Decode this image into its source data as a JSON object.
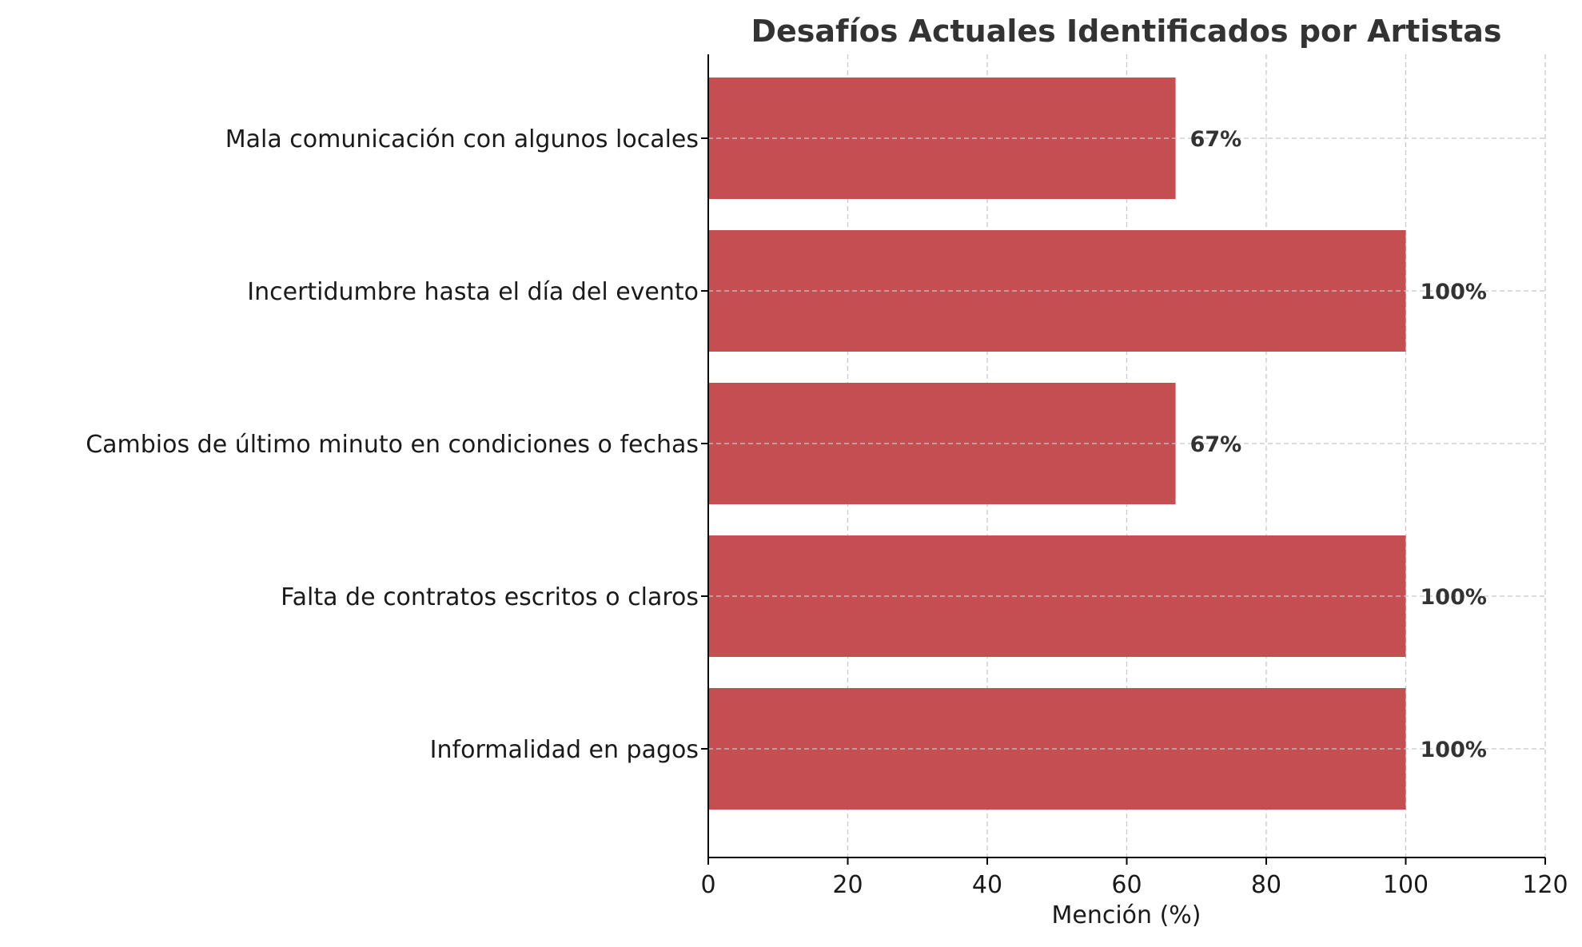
{
  "chart_data": {
    "type": "bar",
    "orientation": "horizontal",
    "title": "Desafíos Actuales Identificados por Artistas",
    "xlabel": "Mención (%)",
    "ylabel": "",
    "categories": [
      "Informalidad en pagos",
      "Falta de contratos escritos o claros",
      "Cambios de último minuto en condiciones o fechas",
      "Incertidumbre hasta el día del evento",
      "Mala comunicación con algunos locales"
    ],
    "values": [
      100,
      100,
      67,
      100,
      67
    ],
    "data_labels": [
      "100%",
      "100%",
      "67%",
      "100%",
      "67%"
    ],
    "xlim": [
      0,
      120
    ],
    "xticks": [
      "0",
      "20",
      "40",
      "60",
      "80",
      "100",
      "120"
    ],
    "grid": true,
    "bar_color": "#c44e52"
  }
}
